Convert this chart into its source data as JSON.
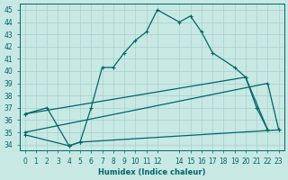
{
  "xlabel": "Humidex (Indice chaleur)",
  "xlim": [
    -0.5,
    23.5
  ],
  "ylim": [
    33.5,
    45.5
  ],
  "xticks": [
    0,
    1,
    2,
    3,
    4,
    5,
    6,
    7,
    8,
    9,
    10,
    11,
    12,
    14,
    15,
    16,
    17,
    18,
    19,
    20,
    21,
    22,
    23
  ],
  "yticks": [
    34,
    35,
    36,
    37,
    38,
    39,
    40,
    41,
    42,
    43,
    44,
    45
  ],
  "background_color": "#c8e8e4",
  "grid_color": "#a8d0cc",
  "line_color": "#006666",
  "curve1_x": [
    0,
    2,
    4,
    5,
    6,
    7,
    8,
    9,
    10,
    11,
    12,
    14,
    15,
    16,
    17,
    19,
    20,
    21,
    22
  ],
  "curve1_y": [
    36.5,
    37.0,
    33.9,
    34.2,
    37.0,
    40.3,
    40.3,
    41.5,
    42.5,
    43.2,
    45.0,
    44.0,
    44.5,
    43.2,
    41.5,
    40.3,
    39.5,
    37.0,
    35.2
  ],
  "curve2_x": [
    0,
    20,
    22
  ],
  "curve2_y": [
    36.5,
    39.5,
    35.2
  ],
  "curve3_x": [
    0,
    22,
    23
  ],
  "curve3_y": [
    35.0,
    39.0,
    35.2
  ],
  "curve4_x": [
    0,
    4,
    5,
    23
  ],
  "curve4_y": [
    34.8,
    33.9,
    34.2,
    35.2
  ]
}
